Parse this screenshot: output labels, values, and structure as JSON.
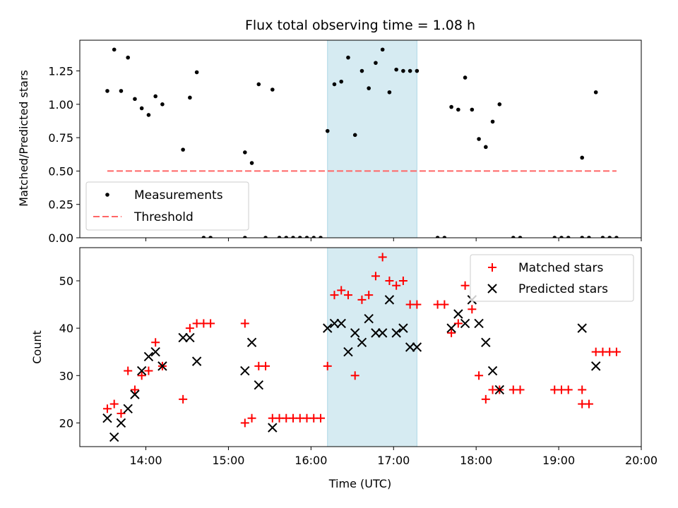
{
  "chart_data": [
    {
      "type": "scatter",
      "title": "Flux total observing time = 1.08 h",
      "ylabel": "Matched/Predicted stars",
      "xlabel": "",
      "xlim": [
        "13:12",
        "20:00"
      ],
      "ylim": [
        0,
        1.48
      ],
      "yticks": [
        "0.00",
        "0.25",
        "0.50",
        "0.75",
        "1.00",
        "1.25"
      ],
      "shaded_region": {
        "x": [
          "16:12",
          "17:17"
        ],
        "color": "#add8e6"
      },
      "legend_location": "lower-left",
      "series": [
        {
          "name": "Measurements",
          "marker": "dot",
          "color": "#000000",
          "points": [
            [
              "13:32",
              1.1
            ],
            [
              "13:37",
              1.41
            ],
            [
              "13:42",
              1.1
            ],
            [
              "13:47",
              1.35
            ],
            [
              "13:52",
              1.04
            ],
            [
              "13:57",
              0.97
            ],
            [
              "14:02",
              0.92
            ],
            [
              "14:07",
              1.06
            ],
            [
              "14:12",
              1.0
            ],
            [
              "14:27",
              0.66
            ],
            [
              "14:32",
              1.05
            ],
            [
              "14:37",
              1.24
            ],
            [
              "14:42",
              0.0
            ],
            [
              "14:47",
              0.0
            ],
            [
              "15:12",
              0.0
            ],
            [
              "15:12",
              0.64
            ],
            [
              "15:17",
              0.56
            ],
            [
              "15:22",
              1.15
            ],
            [
              "15:27",
              0.0
            ],
            [
              "15:32",
              1.11
            ],
            [
              "15:37",
              0.0
            ],
            [
              "15:42",
              0.0
            ],
            [
              "15:47",
              0.0
            ],
            [
              "15:52",
              0.0
            ],
            [
              "15:57",
              0.0
            ],
            [
              "16:02",
              0.0
            ],
            [
              "16:07",
              0.0
            ],
            [
              "16:12",
              0.8
            ],
            [
              "16:17",
              1.15
            ],
            [
              "16:22",
              1.17
            ],
            [
              "16:27",
              1.35
            ],
            [
              "16:32",
              0.77
            ],
            [
              "16:37",
              1.25
            ],
            [
              "16:42",
              1.12
            ],
            [
              "16:47",
              1.31
            ],
            [
              "16:52",
              1.41
            ],
            [
              "16:57",
              1.09
            ],
            [
              "17:02",
              1.26
            ],
            [
              "17:07",
              1.25
            ],
            [
              "17:12",
              1.25
            ],
            [
              "17:17",
              1.25
            ],
            [
              "17:32",
              0.0
            ],
            [
              "17:37",
              0.0
            ],
            [
              "17:42",
              0.98
            ],
            [
              "17:47",
              0.96
            ],
            [
              "17:52",
              1.2
            ],
            [
              "17:57",
              0.96
            ],
            [
              "18:02",
              0.74
            ],
            [
              "18:07",
              0.68
            ],
            [
              "18:12",
              0.87
            ],
            [
              "18:17",
              1.0
            ],
            [
              "18:27",
              0.0
            ],
            [
              "18:32",
              0.0
            ],
            [
              "18:57",
              0.0
            ],
            [
              "19:02",
              0.0
            ],
            [
              "19:07",
              0.0
            ],
            [
              "19:17",
              0.0
            ],
            [
              "19:17",
              0.6
            ],
            [
              "19:22",
              0.0
            ],
            [
              "19:27",
              1.09
            ],
            [
              "19:32",
              0.0
            ],
            [
              "19:37",
              0.0
            ],
            [
              "19:42",
              0.0
            ]
          ]
        },
        {
          "name": "Threshold",
          "style": "dashed-line",
          "color": "#ff6666",
          "x": [
            "13:32",
            "19:42"
          ],
          "y": [
            0.5,
            0.5
          ]
        }
      ]
    },
    {
      "type": "scatter",
      "title": "",
      "ylabel": "Count",
      "xlabel": "Time (UTC)",
      "xlim": [
        "13:12",
        "20:00"
      ],
      "ylim": [
        15,
        57
      ],
      "yticks": [
        "20",
        "30",
        "40",
        "50"
      ],
      "xticks": [
        "14:00",
        "15:00",
        "16:00",
        "17:00",
        "18:00",
        "19:00",
        "20:00"
      ],
      "shaded_region": {
        "x": [
          "16:12",
          "17:17"
        ],
        "color": "#add8e6"
      },
      "legend_location": "upper-right",
      "series": [
        {
          "name": "Matched stars",
          "marker": "plus",
          "color": "#ff0000",
          "points": [
            [
              "13:32",
              23
            ],
            [
              "13:37",
              24
            ],
            [
              "13:42",
              22
            ],
            [
              "13:47",
              31
            ],
            [
              "13:52",
              27
            ],
            [
              "13:57",
              30
            ],
            [
              "14:02",
              31
            ],
            [
              "14:07",
              37
            ],
            [
              "14:12",
              32
            ],
            [
              "14:27",
              25
            ],
            [
              "14:32",
              40
            ],
            [
              "14:37",
              41
            ],
            [
              "14:42",
              41
            ],
            [
              "14:47",
              41
            ],
            [
              "15:12",
              41
            ],
            [
              "15:12",
              20
            ],
            [
              "15:17",
              21
            ],
            [
              "15:22",
              32
            ],
            [
              "15:27",
              32
            ],
            [
              "15:32",
              21
            ],
            [
              "15:37",
              21
            ],
            [
              "15:42",
              21
            ],
            [
              "15:47",
              21
            ],
            [
              "15:52",
              21
            ],
            [
              "15:57",
              21
            ],
            [
              "16:02",
              21
            ],
            [
              "16:07",
              21
            ],
            [
              "16:12",
              32
            ],
            [
              "16:17",
              47
            ],
            [
              "16:22",
              48
            ],
            [
              "16:27",
              47
            ],
            [
              "16:32",
              30
            ],
            [
              "16:37",
              46
            ],
            [
              "16:42",
              47
            ],
            [
              "16:47",
              51
            ],
            [
              "16:52",
              55
            ],
            [
              "16:57",
              50
            ],
            [
              "17:02",
              49
            ],
            [
              "17:07",
              50
            ],
            [
              "17:12",
              45
            ],
            [
              "17:17",
              45
            ],
            [
              "17:32",
              45
            ],
            [
              "17:37",
              45
            ],
            [
              "17:42",
              39
            ],
            [
              "17:47",
              41
            ],
            [
              "17:52",
              49
            ],
            [
              "17:57",
              44
            ],
            [
              "18:02",
              30
            ],
            [
              "18:07",
              25
            ],
            [
              "18:12",
              27
            ],
            [
              "18:17",
              27
            ],
            [
              "18:27",
              27
            ],
            [
              "18:32",
              27
            ],
            [
              "18:57",
              27
            ],
            [
              "19:02",
              27
            ],
            [
              "19:07",
              27
            ],
            [
              "19:17",
              27
            ],
            [
              "19:17",
              24
            ],
            [
              "19:22",
              24
            ],
            [
              "19:27",
              35
            ],
            [
              "19:32",
              35
            ],
            [
              "19:37",
              35
            ],
            [
              "19:42",
              35
            ]
          ]
        },
        {
          "name": "Predicted stars",
          "marker": "x",
          "color": "#000000",
          "points": [
            [
              "13:32",
              21
            ],
            [
              "13:37",
              17
            ],
            [
              "13:42",
              20
            ],
            [
              "13:47",
              23
            ],
            [
              "13:52",
              26
            ],
            [
              "13:57",
              31
            ],
            [
              "14:02",
              34
            ],
            [
              "14:07",
              35
            ],
            [
              "14:12",
              32
            ],
            [
              "14:27",
              38
            ],
            [
              "14:32",
              38
            ],
            [
              "14:37",
              33
            ],
            [
              "15:12",
              31
            ],
            [
              "15:17",
              37
            ],
            [
              "15:22",
              28
            ],
            [
              "15:32",
              19
            ],
            [
              "16:12",
              40
            ],
            [
              "16:17",
              41
            ],
            [
              "16:22",
              41
            ],
            [
              "16:27",
              35
            ],
            [
              "16:32",
              39
            ],
            [
              "16:37",
              37
            ],
            [
              "16:42",
              42
            ],
            [
              "16:47",
              39
            ],
            [
              "16:52",
              39
            ],
            [
              "16:57",
              46
            ],
            [
              "17:02",
              39
            ],
            [
              "17:07",
              40
            ],
            [
              "17:12",
              36
            ],
            [
              "17:17",
              36
            ],
            [
              "17:42",
              40
            ],
            [
              "17:47",
              43
            ],
            [
              "17:52",
              41
            ],
            [
              "17:57",
              46
            ],
            [
              "18:02",
              41
            ],
            [
              "18:07",
              37
            ],
            [
              "18:12",
              31
            ],
            [
              "18:17",
              27
            ],
            [
              "19:17",
              40
            ],
            [
              "19:27",
              32
            ]
          ]
        }
      ]
    }
  ]
}
